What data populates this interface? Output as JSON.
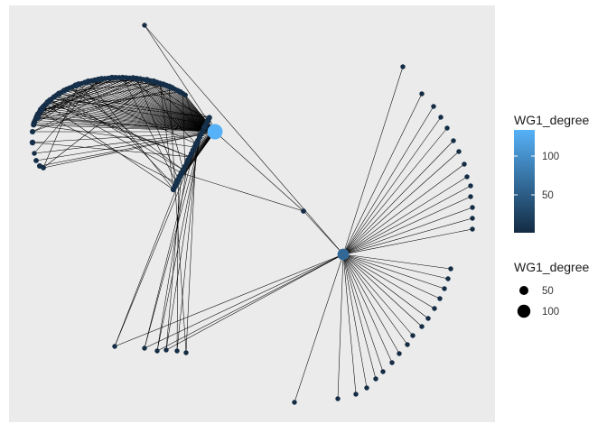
{
  "chart_data": {
    "type": "network",
    "title": "",
    "xlabel": "",
    "ylabel": "",
    "background": "#ebebeb",
    "edge_color": "#000000",
    "node_color_low": "#132b43",
    "node_color_high": "#56b1f7",
    "legends": [
      {
        "kind": "colorbar",
        "title": "WG1_degree",
        "breaks": [
          50,
          100
        ],
        "labels": [
          "50",
          "100"
        ],
        "range": [
          1,
          130
        ]
      },
      {
        "kind": "size",
        "title": "WG1_degree",
        "breaks": [
          50,
          100
        ],
        "labels": [
          "50",
          "100"
        ]
      }
    ]
  }
}
